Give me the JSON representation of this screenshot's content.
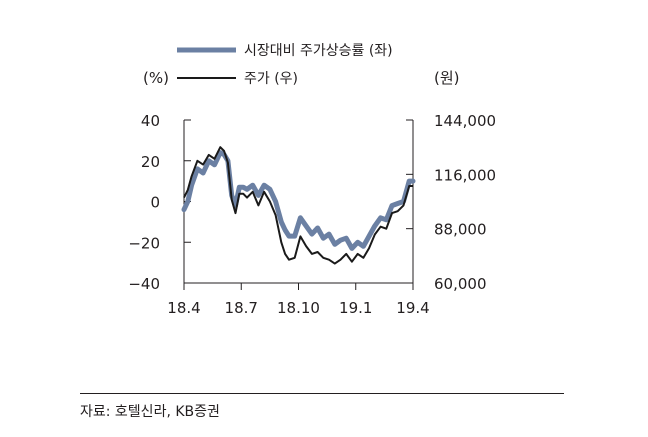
{
  "chart_data": {
    "type": "line",
    "legend": [
      {
        "label": "시장대비 주가상승률 (좌)",
        "color": "#6b80a3"
      },
      {
        "label": "주가 (우)",
        "color": "#1a1a1a"
      }
    ],
    "left_axis": {
      "unit": "(%)",
      "min": -40,
      "max": 40,
      "ticks": [
        40,
        20,
        0,
        -20,
        -40
      ],
      "tick_labels": [
        "40",
        "20",
        "0",
        "−20",
        "−40"
      ]
    },
    "right_axis": {
      "unit": "(원)",
      "min": 60000,
      "max": 144000,
      "ticks": [
        144000,
        116000,
        88000,
        60000
      ],
      "tick_labels": [
        "144,000",
        "116,000",
        "88,000",
        "60,000"
      ]
    },
    "x_tick_labels": [
      "18.4",
      "18.7",
      "18.10",
      "19.1",
      "19.4"
    ],
    "x_range": [
      0,
      12
    ],
    "series": [
      {
        "name": "시장대비 주가상승률 (좌)",
        "axis": "left",
        "color": "#6b80a3",
        "x": [
          0,
          0.2,
          0.4,
          0.7,
          1.0,
          1.3,
          1.6,
          1.9,
          2.1,
          2.3,
          2.5,
          2.7,
          2.9,
          3.1,
          3.3,
          3.6,
          3.9,
          4.2,
          4.5,
          4.8,
          5.1,
          5.3,
          5.5,
          5.8,
          6.1,
          6.4,
          6.7,
          7.0,
          7.3,
          7.6,
          7.9,
          8.2,
          8.5,
          8.8,
          9.1,
          9.4,
          9.7,
          10.0,
          10.3,
          10.6,
          10.9,
          11.2,
          11.5,
          11.8,
          12.0
        ],
        "values": [
          -4,
          0,
          8,
          16,
          14,
          20,
          18,
          24,
          23,
          20,
          3,
          -2,
          7,
          7,
          6,
          8,
          3,
          8,
          6,
          0,
          -10,
          -14,
          -17,
          -17,
          -8,
          -12,
          -16,
          -13,
          -18,
          -16,
          -21,
          -19,
          -18,
          -23,
          -20,
          -22,
          -17,
          -12,
          -8,
          -9,
          -2,
          -1,
          0,
          10,
          10
        ]
      },
      {
        "name": "주가 (우)",
        "axis": "right",
        "color": "#1a1a1a",
        "x": [
          0,
          0.2,
          0.4,
          0.7,
          1.0,
          1.3,
          1.6,
          1.9,
          2.1,
          2.3,
          2.5,
          2.7,
          2.9,
          3.1,
          3.3,
          3.6,
          3.9,
          4.2,
          4.5,
          4.8,
          5.1,
          5.3,
          5.5,
          5.8,
          6.1,
          6.4,
          6.7,
          7.0,
          7.3,
          7.6,
          7.9,
          8.2,
          8.5,
          8.8,
          9.1,
          9.4,
          9.7,
          10.0,
          10.3,
          10.6,
          10.9,
          11.2,
          11.5,
          11.8,
          12.0
        ],
        "values": [
          104000,
          108000,
          115000,
          123000,
          121000,
          126000,
          124000,
          130000,
          128000,
          122000,
          103000,
          96000,
          106000,
          106000,
          104000,
          107000,
          100000,
          107000,
          102000,
          95000,
          81000,
          75000,
          72000,
          73000,
          84000,
          79000,
          75000,
          76000,
          73000,
          72000,
          70000,
          72000,
          75000,
          71000,
          75000,
          73000,
          78000,
          85000,
          89000,
          88000,
          96000,
          97000,
          100000,
          110000,
          110000
        ]
      }
    ]
  },
  "source": "자료: 호텔신라, KB증권"
}
